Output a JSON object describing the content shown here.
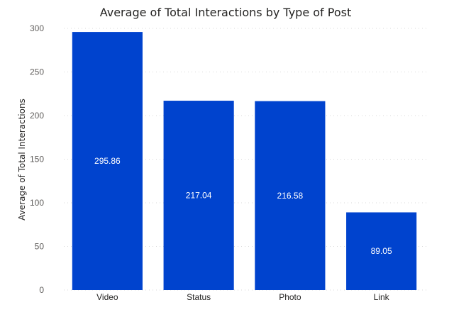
{
  "chart_data": {
    "type": "bar",
    "title": "Average of Total Interactions by Type of Post",
    "xlabel": "",
    "ylabel": "Average of Total Interactions",
    "categories": [
      "Video",
      "Status",
      "Photo",
      "Link"
    ],
    "values": [
      295.86,
      217.04,
      216.58,
      89.05
    ],
    "data_labels": [
      "295.86",
      "217.04",
      "216.58",
      "89.05"
    ],
    "ylim": [
      0,
      300
    ],
    "yticks": [
      0,
      50,
      100,
      150,
      200,
      250,
      300
    ],
    "grid": true,
    "legend": "none",
    "bar_color": "#0043ce"
  }
}
